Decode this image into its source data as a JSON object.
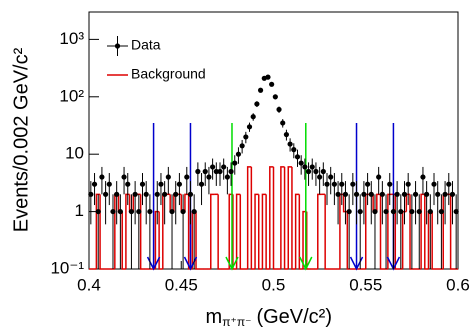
{
  "chart_data": {
    "type": "histogram-points",
    "xlabel": {
      "symbol": "m",
      "subscript": "π⁺π⁻",
      "unit": "(GeV/c²)"
    },
    "ylabel": "Events/0.002 GeV/c²",
    "xlim": [
      0.4,
      0.6
    ],
    "ylim": [
      0.1,
      3000
    ],
    "log_y": true,
    "xticks": [
      0.4,
      0.45,
      0.5,
      0.55,
      0.6
    ],
    "yticks": [
      {
        "value": 0.1,
        "label": "10⁻¹"
      },
      1,
      10,
      {
        "value": 100,
        "label": "10²"
      },
      {
        "value": 1000,
        "label": "10³"
      }
    ],
    "legend": "top-left",
    "series": [
      {
        "name": "Data",
        "color": "#000000",
        "x": [
          0.401,
          0.403,
          0.405,
          0.407,
          0.409,
          0.411,
          0.413,
          0.415,
          0.417,
          0.419,
          0.421,
          0.423,
          0.425,
          0.427,
          0.429,
          0.431,
          0.433,
          0.437,
          0.439,
          0.441,
          0.443,
          0.445,
          0.447,
          0.449,
          0.451,
          0.453,
          0.455,
          0.457,
          0.459,
          0.461,
          0.463,
          0.465,
          0.467,
          0.469,
          0.471,
          0.473,
          0.475,
          0.477,
          0.479,
          0.481,
          0.483,
          0.485,
          0.487,
          0.489,
          0.491,
          0.493,
          0.495,
          0.497,
          0.499,
          0.501,
          0.503,
          0.505,
          0.507,
          0.509,
          0.511,
          0.513,
          0.515,
          0.517,
          0.519,
          0.521,
          0.523,
          0.525,
          0.527,
          0.529,
          0.531,
          0.533,
          0.535,
          0.537,
          0.539,
          0.541,
          0.543,
          0.545,
          0.547,
          0.549,
          0.551,
          0.553,
          0.555,
          0.557,
          0.559,
          0.561,
          0.563,
          0.565,
          0.567,
          0.569,
          0.571,
          0.573,
          0.575,
          0.577,
          0.579,
          0.581,
          0.583,
          0.585,
          0.587,
          0.589,
          0.591,
          0.593,
          0.595,
          0.597,
          0.599
        ],
        "values": [
          2,
          3,
          1,
          4,
          2,
          3,
          1,
          2,
          1,
          4,
          3,
          1,
          2,
          1,
          3,
          2,
          1,
          2,
          3,
          2,
          4,
          1,
          2,
          3,
          1,
          4,
          2,
          1,
          5,
          3,
          5,
          4,
          6,
          5,
          5,
          6,
          4,
          5,
          7,
          10,
          14,
          20,
          30,
          45,
          75,
          130,
          210,
          220,
          165,
          100,
          60,
          35,
          22,
          15,
          12,
          9,
          7,
          6,
          5,
          6,
          5,
          4,
          5,
          3,
          4,
          3,
          2,
          3,
          2,
          1,
          3,
          2,
          1,
          2,
          3,
          2,
          1,
          4,
          2,
          1,
          3,
          1,
          2,
          1,
          2,
          3,
          1,
          2,
          1,
          4,
          2,
          1,
          3,
          2,
          1,
          2,
          3,
          2,
          1
        ],
        "errors": [
          1.4,
          1.7,
          1,
          2,
          1.4,
          1.7,
          1,
          1.4,
          1,
          2,
          1.7,
          1,
          1.4,
          1,
          1.7,
          1.4,
          1,
          1.4,
          1.7,
          1.4,
          2,
          1,
          1.4,
          1.7,
          1,
          2,
          1.4,
          1,
          2.2,
          1.7,
          2.2,
          2,
          2.4,
          2.2,
          2.2,
          2.4,
          2,
          2.2,
          2.6,
          3.2,
          3.7,
          4.5,
          5.5,
          6.7,
          8.7,
          11.4,
          14.5,
          14.8,
          12.8,
          10,
          7.7,
          5.9,
          4.7,
          3.9,
          3.5,
          3,
          2.6,
          2.4,
          2.2,
          2.4,
          2.2,
          2,
          2.2,
          1.7,
          2,
          1.7,
          1.4,
          1.7,
          1.4,
          1,
          1.7,
          1.4,
          1,
          1.4,
          1.7,
          1.4,
          1,
          2,
          1.4,
          1,
          1.7,
          1,
          1.4,
          1,
          1.4,
          1.7,
          1,
          1.4,
          1,
          2,
          1.4,
          1,
          1.7,
          1.4,
          1,
          1.4,
          1.7,
          1.4,
          1
        ]
      },
      {
        "name": "Background",
        "color": "#dd0000",
        "bins": [
          0.4,
          0.402,
          0.404,
          0.406,
          0.408,
          0.41,
          0.412,
          0.414,
          0.416,
          0.418,
          0.42,
          0.422,
          0.424,
          0.426,
          0.428,
          0.43,
          0.432,
          0.434,
          0.436,
          0.438,
          0.44,
          0.442,
          0.444,
          0.446,
          0.448,
          0.45,
          0.452,
          0.454,
          0.456,
          0.458,
          0.46,
          0.462,
          0.464,
          0.466,
          0.468,
          0.47,
          0.472,
          0.474,
          0.476,
          0.478,
          0.48,
          0.482,
          0.484,
          0.486,
          0.488,
          0.49,
          0.492,
          0.494,
          0.496,
          0.498,
          0.5,
          0.502,
          0.504,
          0.506,
          0.508,
          0.51,
          0.512,
          0.514,
          0.516,
          0.518,
          0.52,
          0.522,
          0.524,
          0.526,
          0.528,
          0.53,
          0.532,
          0.534,
          0.536,
          0.538,
          0.54,
          0.542,
          0.544,
          0.546,
          0.548,
          0.55,
          0.552,
          0.554,
          0.556,
          0.558,
          0.56,
          0.562,
          0.564,
          0.566,
          0.568,
          0.57,
          0.572,
          0.574,
          0.576,
          0.578,
          0.58,
          0.582,
          0.584,
          0.586,
          0.588,
          0.59,
          0.592,
          0.594,
          0.596,
          0.598,
          0.6
        ],
        "values": [
          0,
          0,
          2,
          0,
          0,
          0,
          0,
          2,
          1,
          0,
          2,
          1,
          2,
          2,
          0,
          0,
          0,
          0,
          1,
          0,
          2,
          2,
          1,
          2,
          2,
          1,
          2,
          0,
          1,
          0,
          0,
          0,
          0,
          2,
          2,
          0,
          0,
          0,
          2,
          0,
          2,
          0,
          0,
          6,
          0,
          2,
          0,
          2,
          0,
          6,
          0,
          0,
          6,
          0,
          6,
          0,
          2,
          0,
          1,
          0,
          0,
          0,
          2,
          2,
          0,
          0,
          0,
          0,
          2,
          1,
          0,
          0,
          0,
          0,
          0,
          2,
          2,
          1,
          2,
          0,
          0,
          2,
          2,
          0,
          0,
          1,
          2,
          0,
          0,
          0,
          2,
          0,
          1,
          0,
          0,
          0,
          2,
          2,
          0,
          0
        ]
      }
    ],
    "arrows": [
      {
        "x": 0.435,
        "top": 35,
        "color": "#0000cc"
      },
      {
        "x": 0.455,
        "top": 35,
        "color": "#0000cc"
      },
      {
        "x": 0.4775,
        "top": 35,
        "color": "#00dd00"
      },
      {
        "x": 0.5175,
        "top": 35,
        "color": "#00dd00"
      },
      {
        "x": 0.545,
        "top": 35,
        "color": "#0000cc"
      },
      {
        "x": 0.565,
        "top": 35,
        "color": "#0000cc"
      }
    ]
  }
}
